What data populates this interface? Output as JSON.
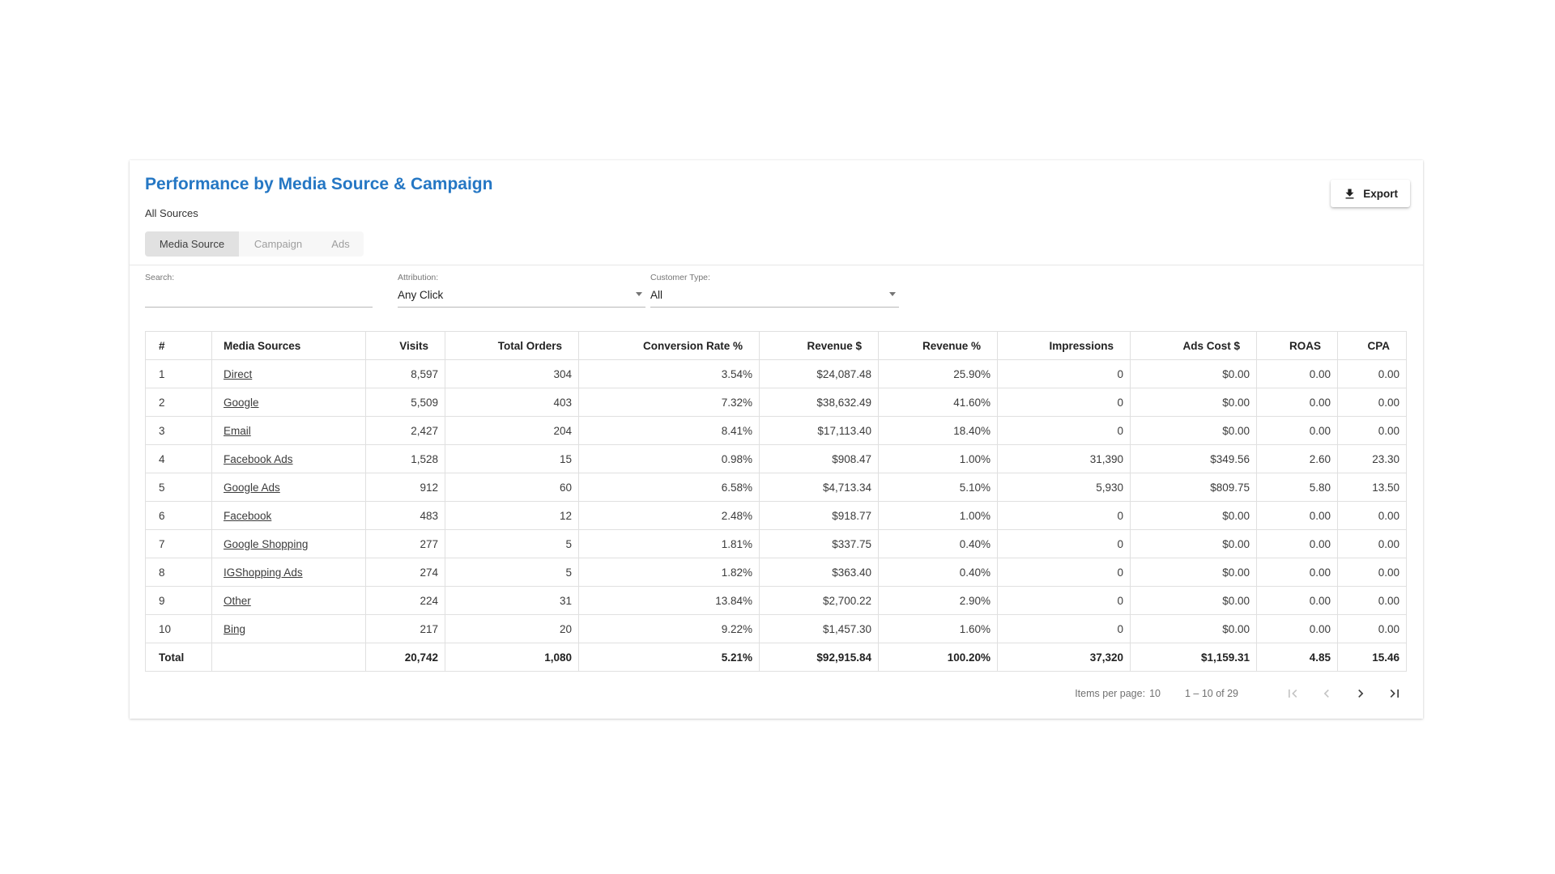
{
  "header": {
    "title": "Performance by Media Source & Campaign",
    "subtitle": "All Sources",
    "export_label": "Export"
  },
  "tabs": [
    {
      "label": "Media Source",
      "selected": true
    },
    {
      "label": "Campaign",
      "selected": false
    },
    {
      "label": "Ads",
      "selected": false
    }
  ],
  "filters": {
    "search": {
      "label": "Search:",
      "value": "",
      "placeholder": ""
    },
    "attribution": {
      "label": "Attribution:",
      "value": "Any Click"
    },
    "customer_type": {
      "label": "Customer Type:",
      "value": "All"
    }
  },
  "table": {
    "columns": [
      "#",
      "Media Sources",
      "Visits",
      "Total Orders",
      "Conversion Rate %",
      "Revenue $",
      "Revenue %",
      "Impressions",
      "Ads Cost $",
      "ROAS",
      "CPA"
    ],
    "rows": [
      [
        "1",
        "Direct",
        "8,597",
        "304",
        "3.54%",
        "$24,087.48",
        "25.90%",
        "0",
        "$0.00",
        "0.00",
        "0.00"
      ],
      [
        "2",
        "Google",
        "5,509",
        "403",
        "7.32%",
        "$38,632.49",
        "41.60%",
        "0",
        "$0.00",
        "0.00",
        "0.00"
      ],
      [
        "3",
        "Email",
        "2,427",
        "204",
        "8.41%",
        "$17,113.40",
        "18.40%",
        "0",
        "$0.00",
        "0.00",
        "0.00"
      ],
      [
        "4",
        "Facebook Ads",
        "1,528",
        "15",
        "0.98%",
        "$908.47",
        "1.00%",
        "31,390",
        "$349.56",
        "2.60",
        "23.30"
      ],
      [
        "5",
        "Google Ads",
        "912",
        "60",
        "6.58%",
        "$4,713.34",
        "5.10%",
        "5,930",
        "$809.75",
        "5.80",
        "13.50"
      ],
      [
        "6",
        "Facebook",
        "483",
        "12",
        "2.48%",
        "$918.77",
        "1.00%",
        "0",
        "$0.00",
        "0.00",
        "0.00"
      ],
      [
        "7",
        "Google Shopping",
        "277",
        "5",
        "1.81%",
        "$337.75",
        "0.40%",
        "0",
        "$0.00",
        "0.00",
        "0.00"
      ],
      [
        "8",
        "IGShopping Ads",
        "274",
        "5",
        "1.82%",
        "$363.40",
        "0.40%",
        "0",
        "$0.00",
        "0.00",
        "0.00"
      ],
      [
        "9",
        "Other",
        "224",
        "31",
        "13.84%",
        "$2,700.22",
        "2.90%",
        "0",
        "$0.00",
        "0.00",
        "0.00"
      ],
      [
        "10",
        "Bing",
        "217",
        "20",
        "9.22%",
        "$1,457.30",
        "1.60%",
        "0",
        "$0.00",
        "0.00",
        "0.00"
      ]
    ],
    "total_row": [
      "Total",
      "",
      "20,742",
      "1,080",
      "5.21%",
      "$92,915.84",
      "100.20%",
      "37,320",
      "$1,159.31",
      "4.85",
      "15.46"
    ]
  },
  "pagination": {
    "items_per_page_label": "Items per page:",
    "items_per_page_value": "10",
    "range_label": "1 – 10 of 29"
  },
  "icons": {
    "export": "download-icon",
    "attribution_caret": "chevron-down-icon",
    "customer_type_caret": "chevron-down-icon",
    "first": "first-page-icon",
    "previous": "chevron-left-icon",
    "next": "chevron-right-icon",
    "last": "last-page-icon"
  },
  "colors": {
    "title_accent": "#2577c4",
    "selected_tab_bg": "#e1e1e1",
    "table_border": "#e0e0e0",
    "filter_underline": "#b8b8b8",
    "disabled_icon": "#c4c4c4",
    "active_icon": "#3f3f3f"
  }
}
